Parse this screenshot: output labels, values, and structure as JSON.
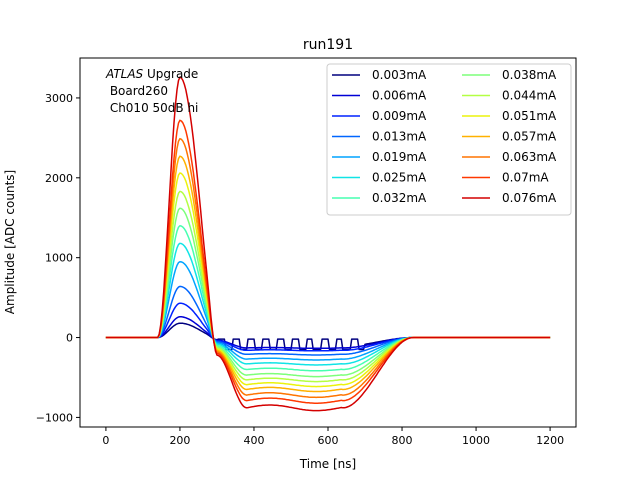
{
  "chart_data": {
    "type": "line",
    "title": "run191",
    "xlabel": "Time [ns]",
    "ylabel": "Amplitude [ADC counts]",
    "xlim": [
      -70,
      1270
    ],
    "ylim": [
      -1120,
      3500
    ],
    "xticks": [
      0,
      200,
      400,
      600,
      800,
      1000,
      1200
    ],
    "yticks": [
      -1000,
      0,
      1000,
      2000,
      3000
    ],
    "grid": false,
    "legend_position": "top-right",
    "legend_columns": 2,
    "annotation": {
      "line1_italic": "ATLAS",
      "line1_rest": " Upgrade",
      "line2": " Board260",
      "line3": " Ch010 50dB hi"
    },
    "pulse_model": {
      "x_start": 0,
      "x_end": 1200,
      "x_step": 4,
      "onset_ns": 140,
      "peak_time_ns": 200,
      "zero_cross_ns": 300,
      "undershoot_flat_end_ns": 640,
      "recovery_end_ns": 830
    },
    "series": [
      {
        "name": "0.003mA",
        "color": "#00007f",
        "peak": 180,
        "undershoot": -110,
        "ringing": true
      },
      {
        "name": "0.006mA",
        "color": "#0000d6",
        "peak": 260,
        "undershoot": -130
      },
      {
        "name": "0.009mA",
        "color": "#0022ff",
        "peak": 430,
        "undershoot": -160
      },
      {
        "name": "0.013mA",
        "color": "#0066ff",
        "peak": 640,
        "undershoot": -210
      },
      {
        "name": "0.019mA",
        "color": "#00a4ff",
        "peak": 950,
        "undershoot": -270
      },
      {
        "name": "0.025mA",
        "color": "#10e4e6",
        "peak": 1180,
        "undershoot": -330
      },
      {
        "name": "0.032mA",
        "color": "#47ffb0",
        "peak": 1400,
        "undershoot": -400
      },
      {
        "name": "0.038mA",
        "color": "#7dff7a",
        "peak": 1620,
        "undershoot": -470
      },
      {
        "name": "0.044mA",
        "color": "#b4ff43",
        "peak": 1830,
        "undershoot": -530
      },
      {
        "name": "0.051mA",
        "color": "#ebf30c",
        "peak": 2060,
        "undershoot": -590
      },
      {
        "name": "0.057mA",
        "color": "#ffb100",
        "peak": 2270,
        "undershoot": -650
      },
      {
        "name": "0.063mA",
        "color": "#ff7400",
        "peak": 2490,
        "undershoot": -720
      },
      {
        "name": "0.07mA",
        "color": "#ff3800",
        "peak": 2720,
        "undershoot": -790
      },
      {
        "name": "0.076mA",
        "color": "#d40000",
        "peak": 3260,
        "undershoot": -880
      }
    ]
  }
}
